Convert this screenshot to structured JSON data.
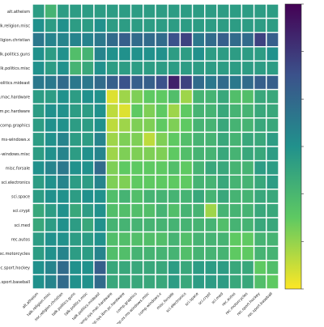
{
  "chart_data": {
    "type": "heatmap",
    "labels": [
      "alt.atheism",
      "talk.religion.misc",
      "soc.religion.christian",
      "talk.politics.guns",
      "talk.politics.misc",
      "talk.politics.mideast",
      "comp.sys.mac.hardware",
      "comp.sys.ibm.pc.hardware",
      "comp.graphics",
      "comp.os.ms-windows.misc",
      "comp.windows.x",
      "misc.forsale",
      "sci.electronics",
      "sci.space",
      "sci.crypt",
      "sci.med",
      "rec.autos",
      "rec.motorcycles",
      "rec.sport.hockey",
      "rec.sport.baseball"
    ],
    "y_labels_visible": [
      "alt.atheism",
      "talk.religion.misc",
      "soc.religion.christian",
      "talk.politics.guns",
      "talk.politics.misc",
      "talk.politics.mideast",
      "sys.mac.hardware",
      "ibm.pc.hardware",
      "comp.graphics",
      "ms-windows.x",
      "ms-windows.misc",
      "misc.forsale",
      "sci.electronics",
      "sci.space",
      "sci.crypt",
      "sci.med",
      "rec.autos",
      "rec.motorcycles",
      "rec.sport.hockey",
      "rec.sport.baseball"
    ],
    "colormap": "viridis_r",
    "vmin": 0.0,
    "vmax": 1.0,
    "grid": true,
    "colorbar_position": "right",
    "values": [
      [
        0.45,
        0.35,
        0.45,
        0.45,
        0.45,
        0.45,
        0.45,
        0.45,
        0.45,
        0.45,
        0.45,
        0.45,
        0.45,
        0.45,
        0.45,
        0.45,
        0.45,
        0.45,
        0.45,
        0.45
      ],
      [
        0.5,
        0.45,
        0.5,
        0.45,
        0.45,
        0.5,
        0.45,
        0.45,
        0.45,
        0.45,
        0.45,
        0.45,
        0.45,
        0.45,
        0.45,
        0.45,
        0.45,
        0.45,
        0.45,
        0.45
      ],
      [
        0.6,
        0.55,
        0.55,
        0.55,
        0.55,
        0.6,
        0.65,
        0.7,
        0.65,
        0.65,
        0.65,
        0.75,
        0.8,
        0.6,
        0.65,
        0.7,
        0.65,
        0.65,
        0.8,
        0.7
      ],
      [
        0.5,
        0.45,
        0.5,
        0.3,
        0.35,
        0.55,
        0.5,
        0.5,
        0.5,
        0.5,
        0.5,
        0.45,
        0.45,
        0.5,
        0.45,
        0.45,
        0.45,
        0.45,
        0.45,
        0.5
      ],
      [
        0.5,
        0.45,
        0.5,
        0.35,
        0.4,
        0.5,
        0.45,
        0.45,
        0.45,
        0.45,
        0.45,
        0.45,
        0.45,
        0.45,
        0.45,
        0.45,
        0.45,
        0.45,
        0.45,
        0.45
      ],
      [
        0.6,
        0.6,
        0.65,
        0.6,
        0.6,
        0.65,
        0.7,
        0.75,
        0.7,
        0.7,
        0.75,
        0.9,
        0.8,
        0.65,
        0.6,
        0.65,
        0.6,
        0.65,
        0.7,
        0.7
      ],
      [
        0.45,
        0.45,
        0.5,
        0.45,
        0.5,
        0.5,
        0.05,
        0.15,
        0.2,
        0.25,
        0.25,
        0.3,
        0.15,
        0.35,
        0.35,
        0.4,
        0.3,
        0.3,
        0.4,
        0.4
      ],
      [
        0.45,
        0.5,
        0.5,
        0.45,
        0.45,
        0.5,
        0.1,
        0.05,
        0.25,
        0.2,
        0.25,
        0.15,
        0.25,
        0.35,
        0.35,
        0.4,
        0.35,
        0.35,
        0.4,
        0.4
      ],
      [
        0.45,
        0.5,
        0.5,
        0.45,
        0.45,
        0.5,
        0.1,
        0.15,
        0.2,
        0.2,
        0.25,
        0.2,
        0.25,
        0.35,
        0.35,
        0.4,
        0.35,
        0.35,
        0.4,
        0.4
      ],
      [
        0.45,
        0.5,
        0.55,
        0.45,
        0.45,
        0.55,
        0.15,
        0.2,
        0.2,
        0.1,
        0.2,
        0.25,
        0.3,
        0.35,
        0.35,
        0.4,
        0.35,
        0.4,
        0.4,
        0.45
      ],
      [
        0.45,
        0.5,
        0.55,
        0.45,
        0.5,
        0.55,
        0.15,
        0.2,
        0.2,
        0.2,
        0.2,
        0.25,
        0.3,
        0.35,
        0.35,
        0.4,
        0.35,
        0.4,
        0.4,
        0.45
      ],
      [
        0.5,
        0.55,
        0.6,
        0.5,
        0.5,
        0.65,
        0.2,
        0.25,
        0.25,
        0.25,
        0.25,
        0.3,
        0.25,
        0.35,
        0.4,
        0.4,
        0.35,
        0.35,
        0.45,
        0.45
      ],
      [
        0.45,
        0.5,
        0.55,
        0.45,
        0.45,
        0.55,
        0.2,
        0.2,
        0.25,
        0.25,
        0.25,
        0.25,
        0.25,
        0.35,
        0.35,
        0.4,
        0.35,
        0.35,
        0.4,
        0.45
      ],
      [
        0.45,
        0.5,
        0.5,
        0.45,
        0.5,
        0.5,
        0.3,
        0.35,
        0.3,
        0.35,
        0.35,
        0.35,
        0.35,
        0.4,
        0.35,
        0.4,
        0.35,
        0.35,
        0.4,
        0.4
      ],
      [
        0.4,
        0.45,
        0.5,
        0.4,
        0.45,
        0.5,
        0.3,
        0.3,
        0.3,
        0.3,
        0.35,
        0.3,
        0.35,
        0.35,
        0.15,
        0.35,
        0.35,
        0.35,
        0.4,
        0.4
      ],
      [
        0.4,
        0.45,
        0.5,
        0.45,
        0.4,
        0.5,
        0.35,
        0.35,
        0.35,
        0.35,
        0.35,
        0.35,
        0.35,
        0.35,
        0.35,
        0.3,
        0.35,
        0.35,
        0.4,
        0.4
      ],
      [
        0.45,
        0.5,
        0.5,
        0.45,
        0.45,
        0.5,
        0.3,
        0.3,
        0.3,
        0.3,
        0.3,
        0.35,
        0.3,
        0.35,
        0.35,
        0.35,
        0.25,
        0.25,
        0.35,
        0.35
      ],
      [
        0.45,
        0.5,
        0.55,
        0.45,
        0.45,
        0.55,
        0.3,
        0.3,
        0.35,
        0.35,
        0.35,
        0.35,
        0.3,
        0.35,
        0.35,
        0.35,
        0.25,
        0.25,
        0.35,
        0.35
      ],
      [
        0.5,
        0.55,
        0.65,
        0.5,
        0.5,
        0.7,
        0.4,
        0.4,
        0.4,
        0.4,
        0.4,
        0.45,
        0.4,
        0.45,
        0.45,
        0.45,
        0.4,
        0.4,
        0.25,
        0.3
      ],
      [
        0.5,
        0.55,
        0.65,
        0.5,
        0.5,
        0.65,
        0.4,
        0.4,
        0.4,
        0.4,
        0.4,
        0.45,
        0.4,
        0.45,
        0.45,
        0.45,
        0.4,
        0.4,
        0.3,
        0.25
      ]
    ]
  }
}
